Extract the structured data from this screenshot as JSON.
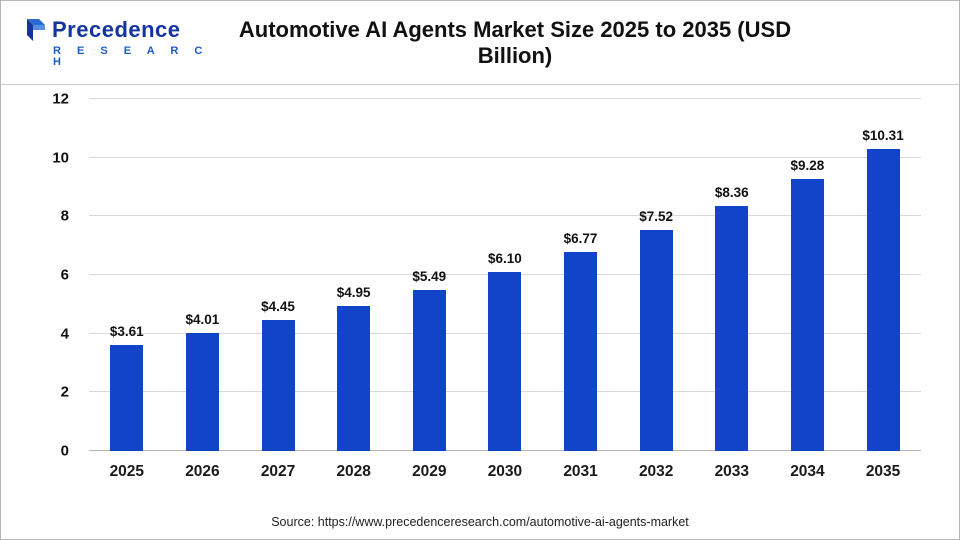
{
  "header": {
    "logo": {
      "name": "Precedence",
      "sub": "R E S E A R C H"
    },
    "title": "Automotive AI Agents Market Size 2025 to 2035 (USD Billion)"
  },
  "chart_data": {
    "type": "bar",
    "title": "Automotive AI Agents Market Size 2025 to 2035 (USD Billion)",
    "categories": [
      "2025",
      "2026",
      "2027",
      "2028",
      "2029",
      "2030",
      "2031",
      "2032",
      "2033",
      "2034",
      "2035"
    ],
    "values": [
      3.61,
      4.01,
      4.45,
      4.95,
      5.49,
      6.1,
      6.77,
      7.52,
      8.36,
      9.28,
      10.31
    ],
    "value_labels": [
      "$3.61",
      "$4.01",
      "$4.45",
      "$4.95",
      "$5.49",
      "$6.10",
      "$6.77",
      "$7.52",
      "$8.36",
      "$9.28",
      "$10.31"
    ],
    "xlabel": "",
    "ylabel": "",
    "ylim": [
      0,
      12
    ],
    "yticks": [
      0,
      2,
      4,
      6,
      8,
      10,
      12
    ],
    "grid": true,
    "legend_position": "none",
    "bar_color": "#1144c8"
  },
  "footer": {
    "source": "Source: https://www.precedenceresearch.com/automotive-ai-agents-market"
  }
}
